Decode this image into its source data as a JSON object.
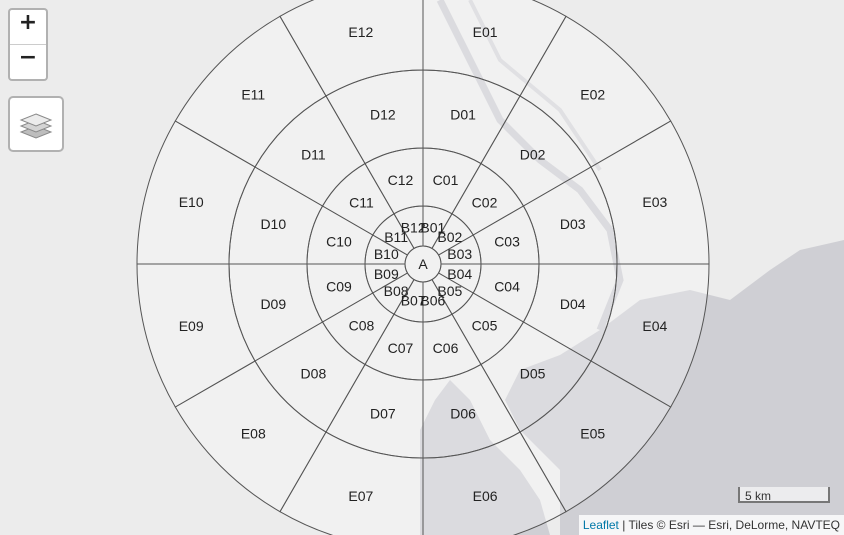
{
  "map": {
    "zoom_in": "+",
    "zoom_out": "−",
    "layers_icon": "layers-icon",
    "scale_label": "5 km",
    "attribution": {
      "link": "Leaflet",
      "separator": " | ",
      "text": "Tiles © Esri — Esri, DeLorme, NAVTEQ"
    },
    "colors": {
      "land": "#ececec",
      "water": "#cfcfd4",
      "zone_fill": "#ffffff",
      "zone_fill_opacity": 0.25,
      "zone_stroke": "#555555"
    }
  },
  "zones": {
    "center": "A",
    "B": [
      "B01",
      "B02",
      "B03",
      "B04",
      "B05",
      "B06",
      "B07",
      "B08",
      "B09",
      "B10",
      "B11",
      "B12"
    ],
    "C": [
      "C01",
      "C02",
      "C03",
      "C04",
      "C05",
      "C06",
      "C07",
      "C08",
      "C09",
      "C10",
      "C11",
      "C12"
    ],
    "D": [
      "D01",
      "D02",
      "D03",
      "D04",
      "D05",
      "D06",
      "D07",
      "D08",
      "D09",
      "D10",
      "D11",
      "D12"
    ],
    "E": [
      "E01",
      "E02",
      "E03",
      "E04",
      "E05",
      "E06",
      "E07",
      "E08",
      "E09",
      "E10",
      "E11",
      "E12"
    ]
  }
}
